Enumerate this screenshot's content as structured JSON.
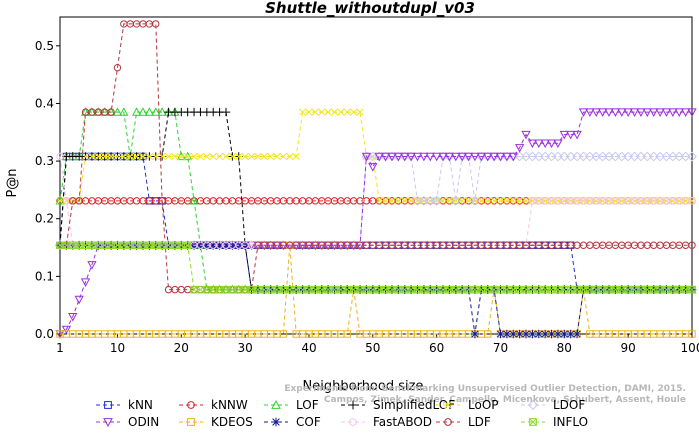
{
  "chart_data": {
    "type": "line",
    "title": "Shuttle_withoutdupl_v03",
    "xlabel": "Neighborhood size",
    "ylabel": "P@n",
    "xlim": [
      1,
      100
    ],
    "ylim": [
      0,
      0.55
    ],
    "xticks": [
      1,
      10,
      20,
      30,
      40,
      50,
      60,
      70,
      80,
      90,
      100
    ],
    "yticks": [
      0.0,
      0.1,
      0.2,
      0.3,
      0.4,
      0.5
    ],
    "ytick_labels": [
      "0.0",
      "0.1",
      "0.2",
      "0.3",
      "0.4",
      "0.5"
    ],
    "legend_position": "bottom",
    "watermark": [
      "Experiments from: Benchmarking Unsupervised Outlier Detection, DAMI, 2015.",
      "Campos, Zimek, Sander, Campello, Micenkova, Schubert, Assent, Houle"
    ],
    "series": [
      {
        "name": "kNN",
        "color": "#1f2fd6",
        "marker": "square",
        "dash": "4,3",
        "points": [
          [
            1,
            0.154
          ],
          [
            2,
            0.308
          ],
          [
            14,
            0.308
          ],
          [
            15,
            0.231
          ],
          [
            17,
            0.231
          ],
          [
            18,
            0.154
          ],
          [
            50,
            0.154
          ],
          [
            51,
            0.154
          ],
          [
            81,
            0.154
          ],
          [
            82,
            0.077
          ],
          [
            100,
            0.077
          ]
        ]
      },
      {
        "name": "kNNW",
        "color": "#e0202a",
        "marker": "circle",
        "dash": "4,3",
        "points": [
          [
            1,
            0.231
          ],
          [
            2,
            0.231
          ],
          [
            100,
            0.231
          ]
        ]
      },
      {
        "name": "LOF",
        "color": "#2ed42e",
        "marker": "triangle-up",
        "dash": "4,3",
        "points": [
          [
            1,
            0.231
          ],
          [
            2,
            0.308
          ],
          [
            4,
            0.308
          ],
          [
            5,
            0.385
          ],
          [
            11,
            0.385
          ],
          [
            12,
            0.308
          ],
          [
            13,
            0.385
          ],
          [
            19,
            0.385
          ],
          [
            20,
            0.308
          ],
          [
            22,
            0.231
          ],
          [
            23,
            0.154
          ],
          [
            24,
            0.077
          ],
          [
            100,
            0.077
          ]
        ]
      },
      {
        "name": "SimplifiedLOF",
        "color": "#000000",
        "marker": "plus",
        "dash": "4,3",
        "points": [
          [
            1,
            0.154
          ],
          [
            2,
            0.308
          ],
          [
            17,
            0.308
          ],
          [
            18,
            0.385
          ],
          [
            27,
            0.385
          ],
          [
            28,
            0.308
          ],
          [
            29,
            0.308
          ],
          [
            30,
            0.154
          ],
          [
            31,
            0.077
          ],
          [
            100,
            0.077
          ]
        ]
      },
      {
        "name": "LoOP",
        "color": "#f2e61a",
        "marker": "cross",
        "dash": "4,3",
        "points": [
          [
            1,
            0.231
          ],
          [
            2,
            0.231
          ],
          [
            5,
            0.308
          ],
          [
            38,
            0.308
          ],
          [
            39,
            0.385
          ],
          [
            48,
            0.385
          ],
          [
            49,
            0.308
          ],
          [
            50,
            0.308
          ],
          [
            51,
            0.231
          ],
          [
            100,
            0.231
          ]
        ]
      },
      {
        "name": "LDOF",
        "color": "#c9c9f0",
        "marker": "diamond",
        "dash": "4,3",
        "points": [
          [
            1,
            0.154
          ],
          [
            20,
            0.154
          ],
          [
            48,
            0.154
          ],
          [
            49,
            0.308
          ],
          [
            56,
            0.308
          ],
          [
            57,
            0.231
          ],
          [
            60,
            0.231
          ],
          [
            61,
            0.308
          ],
          [
            63,
            0.231
          ],
          [
            64,
            0.308
          ],
          [
            66,
            0.231
          ],
          [
            67,
            0.308
          ],
          [
            100,
            0.308
          ]
        ]
      },
      {
        "name": "ODIN",
        "color": "#9a2fe0",
        "marker": "triangle-down",
        "dash": "4,3",
        "points": [
          [
            1,
            0.0
          ],
          [
            2,
            0.008
          ],
          [
            3,
            0.03
          ],
          [
            4,
            0.06
          ],
          [
            5,
            0.09
          ],
          [
            6,
            0.12
          ],
          [
            7,
            0.154
          ],
          [
            48,
            0.154
          ],
          [
            49,
            0.308
          ],
          [
            50,
            0.29
          ],
          [
            51,
            0.308
          ],
          [
            72,
            0.308
          ],
          [
            73,
            0.323
          ],
          [
            74,
            0.346
          ],
          [
            75,
            0.331
          ],
          [
            79,
            0.331
          ],
          [
            80,
            0.346
          ],
          [
            82,
            0.346
          ],
          [
            83,
            0.385
          ],
          [
            100,
            0.385
          ]
        ]
      },
      {
        "name": "KDEOS",
        "color": "#f0b21a",
        "marker": "square",
        "dash": "4,3",
        "points": [
          [
            1,
            0.0
          ],
          [
            36,
            0.0
          ],
          [
            37,
            0.154
          ],
          [
            38,
            0.0
          ],
          [
            46,
            0.0
          ],
          [
            47,
            0.077
          ],
          [
            48,
            0.0
          ],
          [
            68,
            0.0
          ],
          [
            69,
            0.077
          ],
          [
            70,
            0.0
          ],
          [
            82,
            0.0
          ],
          [
            83,
            0.077
          ],
          [
            84,
            0.0
          ],
          [
            100,
            0.0
          ]
        ]
      },
      {
        "name": "COF",
        "color": "#101a8a",
        "marker": "asterisk",
        "dash": "4,3",
        "points": [
          [
            1,
            0.154
          ],
          [
            30,
            0.154
          ],
          [
            31,
            0.077
          ],
          [
            65,
            0.077
          ],
          [
            66,
            0.0
          ],
          [
            67,
            0.077
          ],
          [
            69,
            0.077
          ],
          [
            70,
            0.0
          ],
          [
            82,
            0.0
          ],
          [
            83,
            0.077
          ],
          [
            100,
            0.077
          ]
        ]
      },
      {
        "name": "FastABOD",
        "color": "#f5c6ec",
        "marker": "circle",
        "dash": "4,3",
        "points": [
          [
            1,
            0.308
          ],
          [
            2,
            0.231
          ],
          [
            3,
            0.154
          ],
          [
            8,
            0.154
          ],
          [
            74,
            0.154
          ],
          [
            75,
            0.231
          ],
          [
            100,
            0.231
          ]
        ]
      },
      {
        "name": "LDF",
        "color": "#b5353d",
        "marker": "circle",
        "dash": "4,3",
        "points": [
          [
            1,
            0.154
          ],
          [
            2,
            0.154
          ],
          [
            3,
            0.231
          ],
          [
            5,
            0.385
          ],
          [
            9,
            0.385
          ],
          [
            10,
            0.462
          ],
          [
            11,
            0.538
          ],
          [
            16,
            0.538
          ],
          [
            17,
            0.231
          ],
          [
            18,
            0.077
          ],
          [
            31,
            0.077
          ],
          [
            32,
            0.154
          ],
          [
            100,
            0.154
          ]
        ]
      },
      {
        "name": "INFLO",
        "color": "#8fdc2a",
        "marker": "box-x",
        "dash": "4,3",
        "points": [
          [
            1,
            0.154
          ],
          [
            21,
            0.154
          ],
          [
            22,
            0.077
          ],
          [
            100,
            0.077
          ]
        ]
      }
    ]
  }
}
